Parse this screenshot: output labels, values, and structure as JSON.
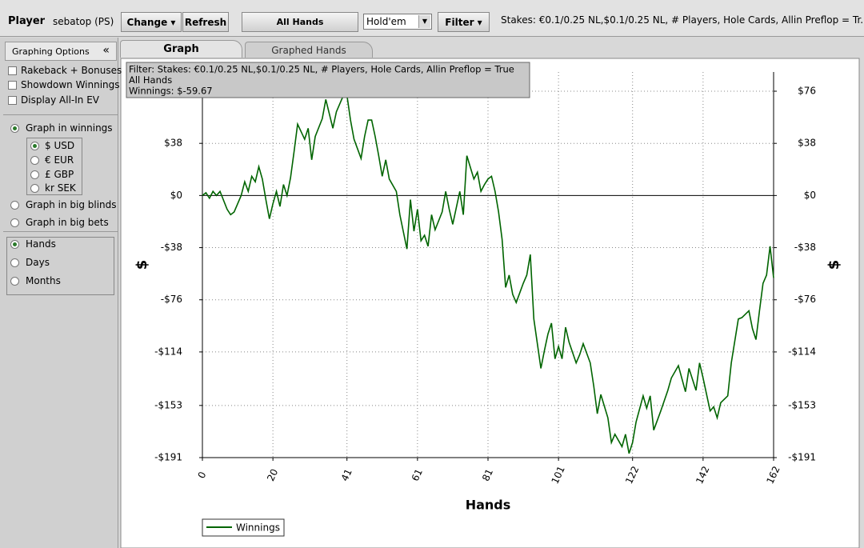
{
  "toolbar": {
    "player_label": "Player",
    "player_name": "sebatop (PS)",
    "change": "Change",
    "refresh": "Refresh",
    "all_hands": "All Hands",
    "game": "Hold'em",
    "filter": "Filter",
    "stakes": "Stakes: €0.1/0.25 NL,$0.1/0.25 NL, # Players, Hole Cards, Allin Preflop = Tr..."
  },
  "sidebar": {
    "title": "Graphing Options",
    "checkboxes": [
      "Rakeback + Bonuses",
      "Showdown Winnings",
      "Display All-In EV"
    ],
    "graph_in_winnings": "Graph in winnings",
    "currencies": [
      "$ USD",
      "€ EUR",
      "£ GBP",
      "kr SEK"
    ],
    "other_modes": [
      "Graph in big blinds",
      "Graph in big bets"
    ],
    "time_units": [
      "Hands",
      "Days",
      "Months"
    ]
  },
  "tabs": [
    "Graph",
    "Graphed Hands"
  ],
  "chart_data": {
    "type": "line",
    "info_lines": [
      "Filter: Stakes: €0.1/0.25 NL,$0.1/0.25 NL, # Players, Hole Cards, Allin Preflop = True",
      "All Hands",
      "Winnings: $-59.67"
    ],
    "x_label": "Hands",
    "y_label": "$",
    "x": [
      0,
      1,
      2,
      3,
      4,
      5,
      7,
      8,
      9,
      11,
      12,
      13,
      14,
      15,
      16,
      17,
      18,
      19,
      20,
      21,
      22,
      23,
      24,
      25,
      26,
      27,
      29,
      30,
      31,
      32,
      34,
      35,
      37,
      38,
      40,
      41,
      42,
      43,
      45,
      46,
      47,
      48,
      49,
      50,
      51,
      52,
      53,
      55,
      56,
      58,
      59,
      60,
      61,
      62,
      63,
      64,
      65,
      66,
      68,
      69,
      70,
      71,
      72,
      73,
      74,
      75,
      77,
      78,
      79,
      80,
      81,
      82,
      83,
      84,
      85,
      86,
      87,
      88,
      89,
      90,
      91,
      92,
      93,
      94,
      96,
      97,
      98,
      99,
      100,
      101,
      102,
      103,
      104,
      106,
      107,
      108,
      110,
      111,
      112,
      113,
      115,
      116,
      117,
      119,
      120,
      121,
      122,
      123,
      125,
      126,
      127,
      128,
      130,
      132,
      133,
      135,
      137,
      138,
      140,
      141,
      142,
      144,
      145,
      146,
      147,
      149,
      150,
      152,
      153,
      155,
      156,
      157,
      158,
      159,
      160,
      161,
      162
    ],
    "series": [
      {
        "name": "Winnings",
        "color": "#006400",
        "values": [
          0,
          2,
          -2,
          3,
          0,
          3,
          -10,
          -14,
          -12,
          0,
          10,
          3,
          14,
          10,
          21,
          12,
          -3,
          -17,
          -6,
          3,
          -8,
          8,
          0,
          13,
          32,
          52,
          41,
          49,
          26,
          43,
          56,
          70,
          49,
          61,
          73,
          73,
          55,
          41,
          27,
          43,
          55,
          55,
          43,
          29,
          14,
          26,
          12,
          3,
          -14,
          -39,
          -3,
          -26,
          -10,
          -33,
          -29,
          -37,
          -14,
          -25,
          -12,
          3,
          -10,
          -21,
          -9,
          3,
          -14,
          29,
          12,
          17,
          3,
          8,
          12,
          14,
          3,
          -12,
          -32,
          -67,
          -58,
          -72,
          -78,
          -71,
          -64,
          -58,
          -43,
          -90,
          -126,
          -113,
          -101,
          -93,
          -119,
          -110,
          -119,
          -96,
          -107,
          -122,
          -116,
          -108,
          -122,
          -139,
          -159,
          -145,
          -162,
          -180,
          -174,
          -183,
          -174,
          -188,
          -180,
          -165,
          -146,
          -155,
          -146,
          -171,
          -157,
          -142,
          -133,
          -124,
          -143,
          -126,
          -142,
          -122,
          -133,
          -157,
          -154,
          -162,
          -151,
          -146,
          -122,
          -90,
          -89,
          -84,
          -97,
          -105,
          -84,
          -64,
          -58,
          -37,
          -60
        ]
      }
    ],
    "xlim": [
      0,
      162
    ],
    "xticks": [
      0,
      20,
      41,
      61,
      81,
      101,
      122,
      142,
      162
    ],
    "ylim": [
      -191,
      90
    ],
    "yticks": [
      {
        "value": -191,
        "label": "-$191"
      },
      {
        "value": -153,
        "label": "-$153"
      },
      {
        "value": -114,
        "label": "-$114"
      },
      {
        "value": -76,
        "label": "-$76"
      },
      {
        "value": -38,
        "label": "-$38"
      },
      {
        "value": 0,
        "label": "$0"
      },
      {
        "value": 38,
        "label": "$38"
      },
      {
        "value": 76,
        "label": "$76"
      }
    ],
    "grid": true
  }
}
